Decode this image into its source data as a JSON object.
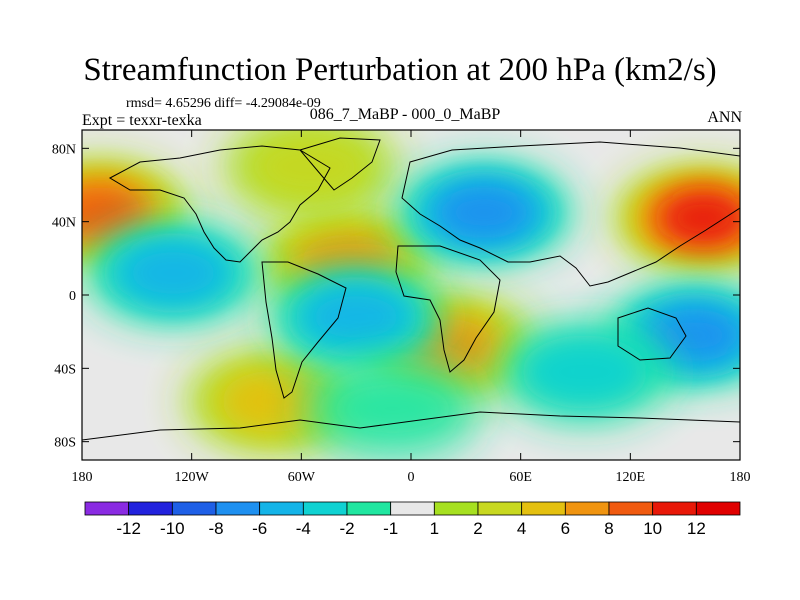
{
  "title": "Streamfunction Perturbation at 200 hPa (km2/s)",
  "stats_text": "rmsd= 4.65296  diff= -4.29084e-09",
  "left_label": "Expt = texxr-texka",
  "center_label": "086_7_MaBP - 000_0_MaBP",
  "right_label": "ANN",
  "chart_data": {
    "type": "heatmap",
    "x_axis": {
      "range": [
        -180,
        180
      ],
      "tick_values": [
        -180,
        -120,
        -60,
        0,
        60,
        120,
        180
      ],
      "tick_labels": [
        "180",
        "120W",
        "60W",
        "0",
        "60E",
        "120E",
        "180"
      ]
    },
    "y_axis": {
      "range": [
        -90,
        90
      ],
      "tick_values": [
        80,
        40,
        0,
        -40,
        -80
      ],
      "tick_labels": [
        "80N",
        "40N",
        "0",
        "40S",
        "80S"
      ]
    },
    "colorbar": {
      "labels": [
        "-12",
        "-10",
        "-8",
        "-6",
        "-4",
        "-2",
        "-1",
        "1",
        "2",
        "4",
        "6",
        "8",
        "10",
        "12"
      ],
      "colors": [
        "#8a2be2",
        "#2222dd",
        "#1e5fe6",
        "#1e90f0",
        "#14b4e8",
        "#10d2d2",
        "#20e6a0",
        "#e8e8e8",
        "#a6e020",
        "#c8d820",
        "#e4c010",
        "#f09410",
        "#f05a10",
        "#e81808",
        "#e00000"
      ]
    },
    "features": [
      {
        "name": "high-north-pacific",
        "lon": -170,
        "lat": 45,
        "value": 11
      },
      {
        "name": "high-west-pacific",
        "lon": 160,
        "lat": 42,
        "value": 12
      },
      {
        "name": "high-atlantic-tropics",
        "lon": -35,
        "lat": 18,
        "value": 9
      },
      {
        "name": "high-south-africa",
        "lon": 20,
        "lat": -28,
        "value": 9
      },
      {
        "name": "high-south-america-south",
        "lon": -75,
        "lat": -58,
        "value": 6
      },
      {
        "name": "high-greenland",
        "lon": -55,
        "lat": 70,
        "value": 4
      },
      {
        "name": "low-eurasia",
        "lon": 40,
        "lat": 45,
        "value": -9
      },
      {
        "name": "low-south-pacific",
        "lon": 155,
        "lat": -22,
        "value": -8
      },
      {
        "name": "low-east-pacific",
        "lon": -130,
        "lat": 12,
        "value": -6
      },
      {
        "name": "low-south-atlantic",
        "lon": -30,
        "lat": -12,
        "value": -6
      },
      {
        "name": "low-indian-ocean",
        "lon": 95,
        "lat": -42,
        "value": -4
      },
      {
        "name": "low-southern-ocean",
        "lon": -10,
        "lat": -62,
        "value": -3
      }
    ]
  }
}
